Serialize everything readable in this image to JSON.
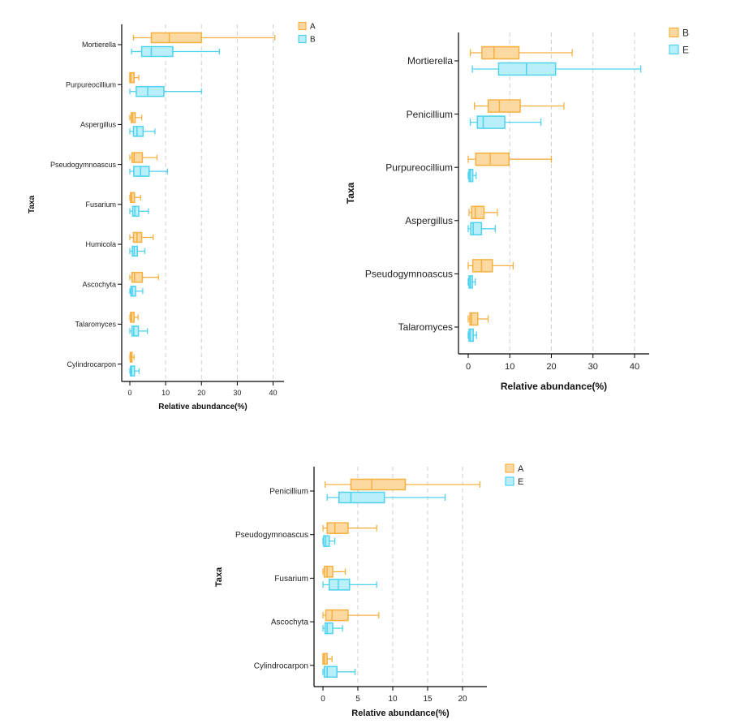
{
  "colors": {
    "A": "#f5b041",
    "B_fill": "#fcd9a0",
    "E": "#4fd2ee"
  },
  "chart_data": [
    {
      "type": "box",
      "title": "",
      "xlabel": "Relative abundance(%)",
      "ylabel": "Taxa",
      "xlim": [
        -1,
        41
      ],
      "xticks": [
        0,
        10,
        20,
        30,
        40
      ],
      "grid": "vertical dashed",
      "legend": "top-right",
      "series": [
        {
          "name": "A",
          "color": "#f5b041",
          "fill": "#fcd9a0"
        },
        {
          "name": "B",
          "color": "#4fd2ee",
          "fill": "#b9effa"
        }
      ],
      "categories": [
        "Mortierella",
        "Purpureocillium",
        "Aspergillus",
        "Pseudogymnoascus",
        "Fusarium",
        "Humicola",
        "Ascochyta",
        "Talaromyces",
        "Cylindrocarpon"
      ],
      "boxes": [
        [
          [
            1,
            6,
            11,
            20,
            40.5
          ],
          [
            0.5,
            3.3,
            6,
            12,
            25
          ]
        ],
        [
          [
            0,
            0,
            0.3,
            1.2,
            2.5
          ],
          [
            0,
            1.8,
            5,
            9.5,
            20
          ]
        ],
        [
          [
            0,
            0.4,
            0.8,
            1.5,
            3.3
          ],
          [
            0,
            1,
            2,
            3.7,
            7
          ]
        ],
        [
          [
            0,
            0.6,
            1.2,
            3.5,
            7.6
          ],
          [
            0,
            1.1,
            3,
            5.4,
            10.5
          ]
        ],
        [
          [
            0,
            0.2,
            0.5,
            1.3,
            3
          ],
          [
            0,
            0.8,
            1.4,
            2.5,
            5.2
          ]
        ],
        [
          [
            0,
            1,
            2,
            3.3,
            6.5
          ],
          [
            0,
            0.7,
            1.2,
            2.1,
            4.2
          ]
        ],
        [
          [
            0,
            0.6,
            1.3,
            3.5,
            8
          ],
          [
            0,
            0.3,
            0.7,
            1.6,
            3.6
          ]
        ],
        [
          [
            0,
            0.2,
            0.5,
            1.2,
            2.3
          ],
          [
            0,
            0.6,
            1.1,
            2.4,
            4.9
          ]
        ],
        [
          [
            0,
            0.1,
            0.3,
            0.6,
            1.2
          ],
          [
            0,
            0.2,
            0.5,
            1.3,
            2.6
          ]
        ]
      ]
    },
    {
      "type": "box",
      "title": "",
      "xlabel": "Relative abundance(%)",
      "ylabel": "Taxa",
      "xlim": [
        -2,
        44
      ],
      "xticks": [
        0,
        10,
        20,
        30,
        40
      ],
      "grid": "vertical dashed",
      "legend": "top-right",
      "series": [
        {
          "name": "B",
          "color": "#f5b041",
          "fill": "#fcd9a0"
        },
        {
          "name": "E",
          "color": "#4fd2ee",
          "fill": "#b9effa"
        }
      ],
      "categories": [
        "Mortierella",
        "Penicillium",
        "Purpureocillium",
        "Aspergillus",
        "Pseudogymnoascus",
        "Talaromyces"
      ],
      "boxes": [
        [
          [
            0.5,
            3.3,
            6.2,
            12.2,
            25
          ],
          [
            1,
            7.3,
            14,
            21,
            41.5
          ]
        ],
        [
          [
            1.5,
            4.8,
            7.5,
            12.5,
            23
          ],
          [
            0.5,
            2.2,
            3.6,
            8.8,
            17.5
          ]
        ],
        [
          [
            0,
            1.8,
            5.3,
            9.8,
            20
          ],
          [
            0,
            0.2,
            0.5,
            1.1,
            1.9
          ]
        ],
        [
          [
            0.2,
            0.8,
            1.7,
            3.8,
            7
          ],
          [
            0,
            0.6,
            1.2,
            3.2,
            6.5
          ]
        ],
        [
          [
            0,
            1.1,
            3.2,
            5.8,
            10.8
          ],
          [
            0,
            0.2,
            0.5,
            1,
            1.7
          ]
        ],
        [
          [
            0,
            0.4,
            0.8,
            2.3,
            4.8
          ],
          [
            0,
            0.2,
            0.5,
            1.2,
            2
          ]
        ]
      ]
    },
    {
      "type": "box",
      "title": "",
      "xlabel": "Relative abundance(%)",
      "ylabel": "Taxa",
      "xlim": [
        -0.8,
        23.5
      ],
      "xticks": [
        0,
        5,
        10,
        15,
        20
      ],
      "grid": "vertical dashed",
      "legend": "top-right",
      "series": [
        {
          "name": "A",
          "color": "#f5b041",
          "fill": "#fcd9a0"
        },
        {
          "name": "E",
          "color": "#4fd2ee",
          "fill": "#b9effa"
        }
      ],
      "categories": [
        "Penicillium",
        "Pseudogymnoascus",
        "Fusarium",
        "Ascochyta",
        "Cylindrocarpon"
      ],
      "boxes": [
        [
          [
            0.3,
            4,
            7,
            11.8,
            22.5
          ],
          [
            0.6,
            2.3,
            4,
            8.8,
            17.5
          ]
        ],
        [
          [
            0,
            0.6,
            1.7,
            3.6,
            7.7
          ],
          [
            0,
            0.1,
            0.4,
            0.9,
            1.7
          ]
        ],
        [
          [
            0,
            0.2,
            0.6,
            1.4,
            3.2
          ],
          [
            0,
            0.9,
            2.2,
            3.8,
            7.7
          ]
        ],
        [
          [
            0,
            0.4,
            1.3,
            3.6,
            8
          ],
          [
            0,
            0.3,
            0.6,
            1.4,
            2.8
          ]
        ],
        [
          [
            0,
            0,
            0.2,
            0.6,
            1.3
          ],
          [
            0,
            0.2,
            0.6,
            2,
            4.6
          ]
        ]
      ]
    }
  ]
}
